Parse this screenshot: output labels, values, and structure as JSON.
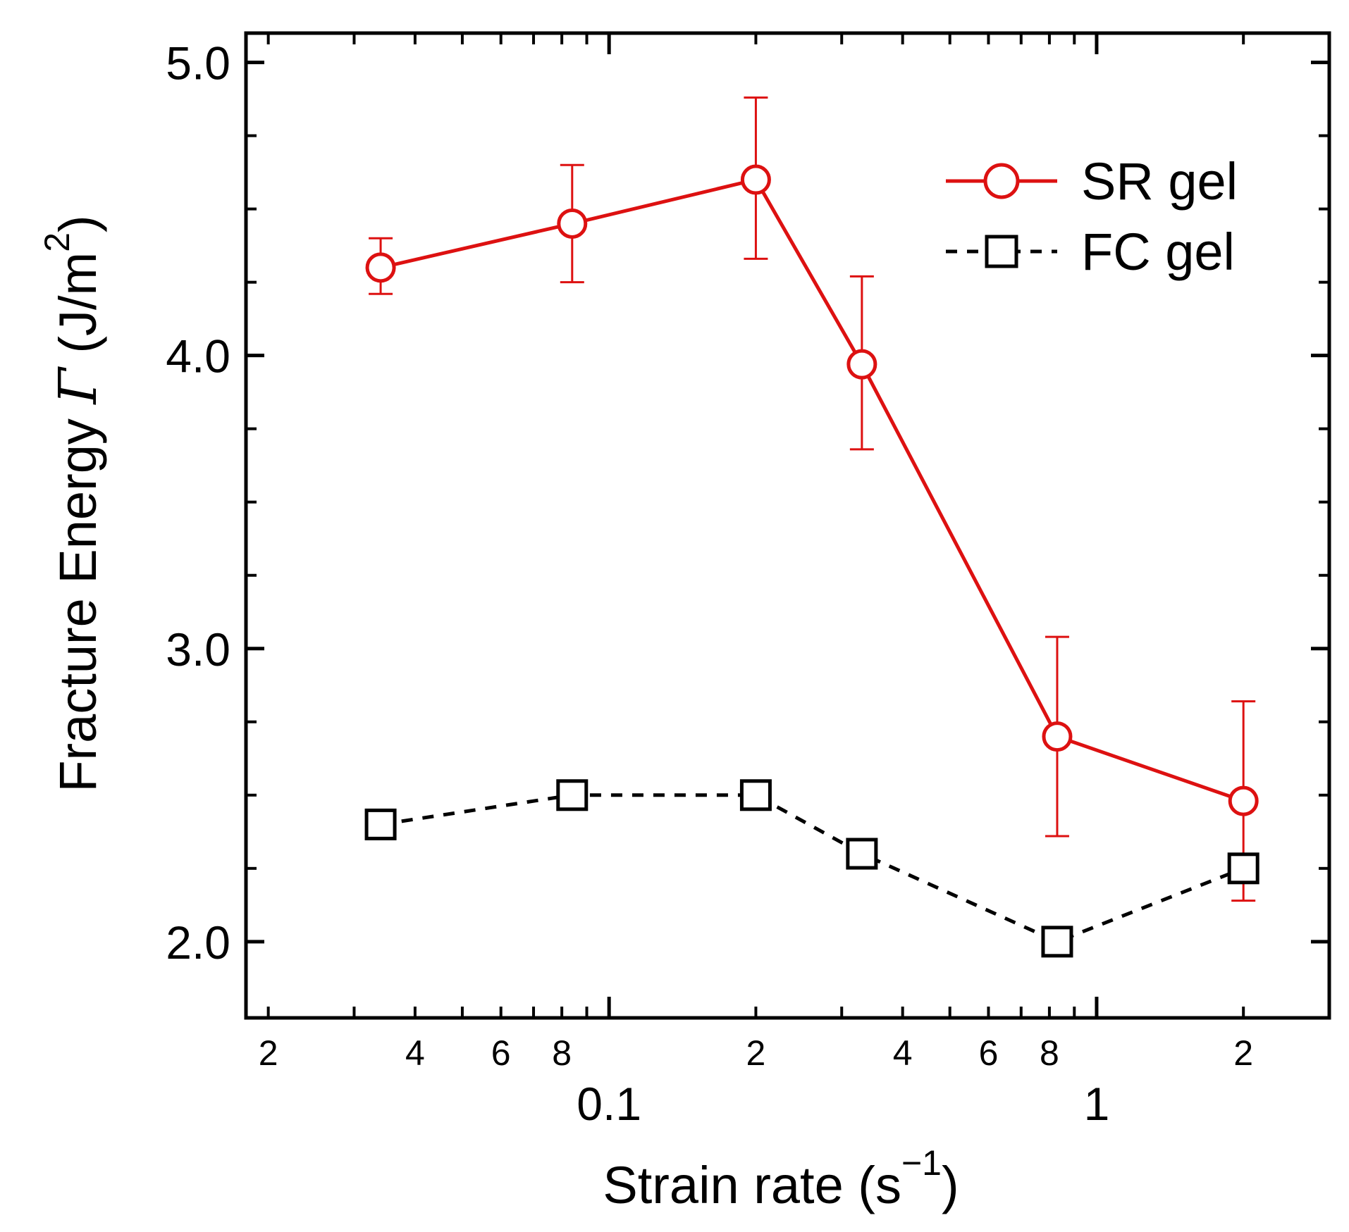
{
  "chart_data": {
    "type": "line",
    "title": "",
    "xlabel": "Strain rate (s",
    "xlabel_exponent": "−1",
    "xlabel_suffix": ")",
    "ylabel": "Fracture Energy ",
    "ylabel_symbol": "Γ",
    "ylabel_unit": " (J/m",
    "ylabel_exponent": "2",
    "ylabel_suffix": ")",
    "x_scale": "log",
    "xlim": [
      0.018,
      3.0
    ],
    "ylim": [
      1.74,
      5.1
    ],
    "grid": false,
    "legend_position": "top-right",
    "y_major_ticks": [
      {
        "value": 2.0,
        "label": "2.0"
      },
      {
        "value": 3.0,
        "label": "3.0"
      },
      {
        "value": 4.0,
        "label": "4.0"
      },
      {
        "value": 5.0,
        "label": "5.0"
      }
    ],
    "y_minor_ticks": [
      2.25,
      2.5,
      2.75,
      3.25,
      3.5,
      3.75,
      4.25,
      4.5,
      4.75
    ],
    "x_major_ticks": [
      {
        "value": 0.1,
        "label": "0.1"
      },
      {
        "value": 1,
        "label": "1"
      }
    ],
    "x_minor_ticks": [
      {
        "value": 0.02,
        "label": "2"
      },
      {
        "value": 0.03,
        "label": ""
      },
      {
        "value": 0.04,
        "label": "4"
      },
      {
        "value": 0.05,
        "label": ""
      },
      {
        "value": 0.06,
        "label": "6"
      },
      {
        "value": 0.07,
        "label": ""
      },
      {
        "value": 0.08,
        "label": "8"
      },
      {
        "value": 0.09,
        "label": ""
      },
      {
        "value": 0.2,
        "label": "2"
      },
      {
        "value": 0.3,
        "label": ""
      },
      {
        "value": 0.4,
        "label": "4"
      },
      {
        "value": 0.5,
        "label": ""
      },
      {
        "value": 0.6,
        "label": "6"
      },
      {
        "value": 0.7,
        "label": ""
      },
      {
        "value": 0.8,
        "label": "8"
      },
      {
        "value": 0.9,
        "label": ""
      },
      {
        "value": 2,
        "label": "2"
      }
    ],
    "series": [
      {
        "name": "SR gel",
        "color": "#dd1111",
        "marker": "circle",
        "line_style": "solid",
        "x": [
          0.034,
          0.084,
          0.2,
          0.33,
          0.83,
          2.0
        ],
        "y": [
          4.3,
          4.45,
          4.6,
          3.97,
          2.7,
          2.48
        ],
        "err_low": [
          4.21,
          4.25,
          4.33,
          3.68,
          2.36,
          2.14
        ],
        "err_high": [
          4.4,
          4.65,
          4.88,
          4.27,
          3.04,
          2.82
        ]
      },
      {
        "name": "FC gel",
        "color": "#000000",
        "marker": "square",
        "line_style": "dashed",
        "x": [
          0.034,
          0.084,
          0.2,
          0.33,
          0.83,
          2.0
        ],
        "y": [
          2.4,
          2.5,
          2.5,
          2.3,
          2.0,
          2.25
        ]
      }
    ]
  }
}
